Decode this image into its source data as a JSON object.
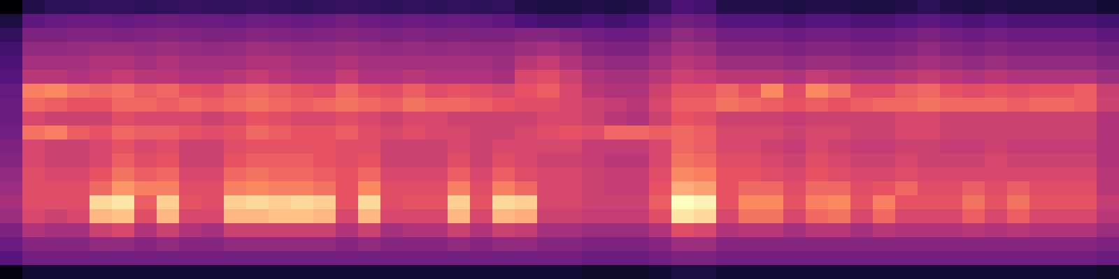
{
  "chart_data": {
    "type": "heatmap",
    "tick_labels": false,
    "xlim": [
      0,
      50
    ],
    "ylim": [
      0,
      20
    ],
    "cells": [
      [
        10,
        22,
        24,
        24,
        25,
        25,
        24,
        25,
        26,
        25,
        25,
        26,
        25,
        24,
        25,
        26,
        25,
        24,
        25,
        24,
        25,
        24,
        25,
        22,
        20,
        20,
        22,
        20,
        22,
        25,
        30,
        28,
        22,
        22,
        22,
        20,
        22,
        22,
        20,
        20,
        22,
        24,
        22,
        20,
        22,
        20,
        20,
        20,
        20,
        18
      ],
      [
        20,
        34,
        35,
        36,
        36,
        35,
        36,
        37,
        36,
        36,
        35,
        37,
        36,
        35,
        36,
        38,
        36,
        35,
        36,
        35,
        36,
        35,
        34,
        30,
        28,
        28,
        30,
        28,
        30,
        35,
        38,
        36,
        32,
        32,
        32,
        30,
        32,
        32,
        30,
        30,
        32,
        34,
        32,
        30,
        32,
        30,
        30,
        30,
        30,
        28
      ],
      [
        25,
        40,
        40,
        41,
        41,
        40,
        41,
        42,
        41,
        40,
        40,
        42,
        41,
        40,
        41,
        42,
        41,
        40,
        41,
        40,
        40,
        40,
        40,
        42,
        42,
        40,
        38,
        36,
        36,
        40,
        44,
        42,
        38,
        38,
        38,
        36,
        38,
        38,
        36,
        36,
        38,
        40,
        38,
        36,
        38,
        36,
        36,
        36,
        36,
        34
      ],
      [
        28,
        44,
        44,
        45,
        46,
        46,
        45,
        46,
        45,
        44,
        45,
        47,
        46,
        45,
        45,
        46,
        45,
        44,
        45,
        44,
        45,
        44,
        44,
        46,
        48,
        46,
        42,
        40,
        40,
        44,
        48,
        46,
        42,
        42,
        42,
        40,
        42,
        42,
        40,
        40,
        42,
        44,
        42,
        40,
        42,
        40,
        40,
        40,
        40,
        38
      ],
      [
        30,
        48,
        48,
        48,
        50,
        50,
        48,
        50,
        48,
        48,
        48,
        50,
        50,
        48,
        48,
        50,
        48,
        48,
        48,
        48,
        48,
        48,
        46,
        52,
        54,
        50,
        46,
        44,
        44,
        48,
        52,
        50,
        46,
        46,
        46,
        44,
        46,
        46,
        44,
        44,
        46,
        48,
        46,
        44,
        46,
        44,
        44,
        44,
        44,
        42
      ],
      [
        32,
        52,
        52,
        50,
        52,
        54,
        52,
        52,
        50,
        50,
        52,
        54,
        52,
        50,
        50,
        54,
        50,
        50,
        52,
        50,
        50,
        50,
        48,
        58,
        60,
        56,
        50,
        48,
        48,
        52,
        56,
        54,
        52,
        52,
        52,
        50,
        54,
        52,
        50,
        50,
        52,
        54,
        52,
        50,
        52,
        50,
        50,
        50,
        50,
        46
      ],
      [
        35,
        70,
        72,
        68,
        66,
        68,
        64,
        66,
        62,
        60,
        64,
        66,
        64,
        62,
        60,
        66,
        62,
        60,
        64,
        60,
        62,
        60,
        58,
        62,
        64,
        58,
        52,
        50,
        50,
        56,
        62,
        62,
        66,
        62,
        72,
        60,
        72,
        68,
        60,
        60,
        64,
        66,
        62,
        60,
        62,
        60,
        62,
        62,
        64,
        55
      ],
      [
        36,
        66,
        64,
        62,
        62,
        66,
        66,
        64,
        66,
        64,
        66,
        68,
        66,
        64,
        66,
        68,
        66,
        64,
        68,
        66,
        66,
        64,
        62,
        60,
        60,
        58,
        56,
        54,
        52,
        58,
        64,
        64,
        68,
        66,
        64,
        62,
        64,
        62,
        64,
        66,
        66,
        68,
        66,
        66,
        66,
        64,
        66,
        66,
        64,
        56
      ],
      [
        36,
        58,
        56,
        56,
        56,
        60,
        58,
        58,
        58,
        56,
        58,
        62,
        60,
        58,
        58,
        60,
        58,
        56,
        58,
        58,
        56,
        56,
        56,
        56,
        58,
        58,
        56,
        52,
        50,
        56,
        62,
        60,
        56,
        56,
        56,
        54,
        56,
        56,
        56,
        56,
        58,
        58,
        56,
        56,
        56,
        56,
        56,
        56,
        56,
        50
      ],
      [
        38,
        68,
        70,
        64,
        62,
        66,
        64,
        64,
        62,
        60,
        62,
        66,
        64,
        62,
        62,
        64,
        60,
        58,
        60,
        58,
        58,
        56,
        56,
        58,
        60,
        62,
        60,
        66,
        66,
        64,
        66,
        64,
        58,
        58,
        58,
        56,
        58,
        58,
        56,
        56,
        58,
        58,
        56,
        56,
        56,
        56,
        56,
        56,
        56,
        50
      ],
      [
        40,
        58,
        56,
        56,
        58,
        62,
        58,
        60,
        56,
        56,
        60,
        62,
        62,
        62,
        62,
        60,
        60,
        56,
        56,
        56,
        58,
        56,
        58,
        58,
        58,
        58,
        54,
        54,
        54,
        58,
        66,
        64,
        58,
        58,
        56,
        54,
        58,
        56,
        54,
        54,
        56,
        56,
        54,
        54,
        56,
        54,
        54,
        54,
        54,
        50
      ],
      [
        42,
        58,
        56,
        56,
        58,
        64,
        60,
        62,
        56,
        56,
        62,
        64,
        64,
        64,
        62,
        60,
        62,
        56,
        56,
        56,
        60,
        56,
        60,
        58,
        56,
        56,
        54,
        52,
        52,
        58,
        68,
        66,
        60,
        60,
        58,
        56,
        60,
        58,
        56,
        56,
        58,
        56,
        56,
        56,
        58,
        56,
        56,
        56,
        56,
        50
      ],
      [
        44,
        60,
        58,
        58,
        62,
        68,
        64,
        66,
        58,
        58,
        66,
        68,
        66,
        66,
        64,
        62,
        66,
        58,
        58,
        58,
        64,
        58,
        64,
        60,
        58,
        58,
        56,
        54,
        54,
        60,
        72,
        70,
        62,
        62,
        60,
        58,
        62,
        60,
        58,
        58,
        60,
        58,
        58,
        58,
        58,
        58,
        58,
        58,
        58,
        52
      ],
      [
        46,
        60,
        60,
        60,
        66,
        74,
        70,
        70,
        60,
        60,
        70,
        72,
        70,
        70,
        68,
        62,
        72,
        60,
        60,
        60,
        70,
        60,
        70,
        66,
        58,
        58,
        56,
        54,
        54,
        62,
        78,
        76,
        62,
        66,
        66,
        60,
        66,
        66,
        60,
        62,
        66,
        60,
        60,
        64,
        60,
        64,
        60,
        60,
        60,
        52
      ],
      [
        48,
        60,
        60,
        60,
        86,
        88,
        64,
        84,
        62,
        60,
        84,
        86,
        84,
        86,
        84,
        62,
        86,
        60,
        62,
        62,
        84,
        62,
        86,
        84,
        58,
        58,
        56,
        56,
        56,
        64,
        92,
        90,
        62,
        72,
        72,
        62,
        70,
        72,
        62,
        70,
        62,
        62,
        62,
        68,
        62,
        68,
        62,
        62,
        62,
        54
      ],
      [
        46,
        58,
        56,
        58,
        80,
        82,
        60,
        80,
        58,
        58,
        80,
        80,
        82,
        82,
        80,
        58,
        80,
        58,
        58,
        58,
        80,
        58,
        80,
        78,
        56,
        56,
        54,
        54,
        54,
        60,
        88,
        86,
        58,
        68,
        68,
        58,
        66,
        68,
        58,
        66,
        58,
        58,
        58,
        64,
        58,
        64,
        58,
        58,
        58,
        52
      ],
      [
        40,
        50,
        48,
        48,
        56,
        58,
        50,
        56,
        50,
        48,
        56,
        56,
        56,
        56,
        56,
        50,
        56,
        48,
        50,
        50,
        56,
        50,
        56,
        54,
        48,
        48,
        46,
        46,
        46,
        50,
        60,
        58,
        50,
        52,
        52,
        48,
        52,
        52,
        48,
        52,
        50,
        50,
        50,
        52,
        50,
        52,
        50,
        50,
        50,
        46
      ],
      [
        36,
        42,
        42,
        42,
        44,
        44,
        42,
        44,
        42,
        42,
        44,
        44,
        44,
        44,
        44,
        42,
        44,
        42,
        42,
        42,
        44,
        42,
        44,
        44,
        42,
        42,
        40,
        40,
        40,
        42,
        46,
        46,
        42,
        42,
        42,
        42,
        42,
        42,
        42,
        42,
        42,
        42,
        42,
        42,
        42,
        42,
        42,
        42,
        42,
        40
      ],
      [
        32,
        38,
        38,
        38,
        38,
        38,
        38,
        38,
        38,
        38,
        38,
        38,
        38,
        38,
        38,
        38,
        38,
        38,
        38,
        38,
        38,
        38,
        38,
        38,
        38,
        38,
        36,
        36,
        36,
        38,
        40,
        40,
        38,
        38,
        38,
        38,
        38,
        38,
        38,
        38,
        38,
        38,
        38,
        38,
        38,
        38,
        38,
        38,
        38,
        36
      ],
      [
        12,
        18,
        18,
        18,
        18,
        18,
        18,
        18,
        18,
        18,
        18,
        18,
        18,
        18,
        18,
        18,
        18,
        18,
        18,
        18,
        18,
        18,
        18,
        18,
        18,
        18,
        16,
        16,
        16,
        18,
        20,
        20,
        18,
        18,
        18,
        18,
        18,
        18,
        18,
        18,
        18,
        18,
        18,
        18,
        18,
        18,
        18,
        18,
        18,
        16
      ]
    ]
  }
}
